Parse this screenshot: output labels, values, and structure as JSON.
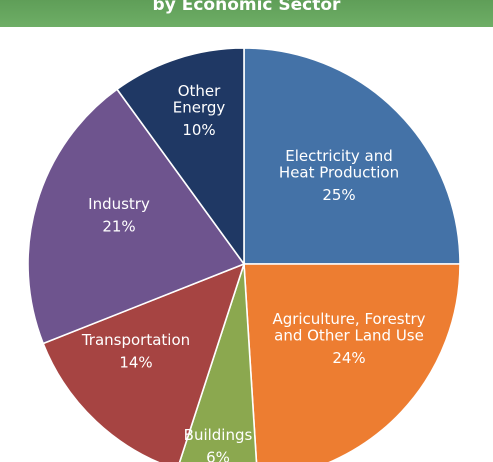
{
  "header": {
    "title": "by Economic Sector"
  },
  "chart_data": {
    "type": "pie",
    "title": "by Economic Sector",
    "slices": [
      {
        "label": "Electricity and Heat Production",
        "label_lines": [
          "Electricity and",
          "Heat Production"
        ],
        "value": 25,
        "value_label": "25%",
        "color": "#4472a7"
      },
      {
        "label": "Agriculture, Forestry and Other Land Use",
        "label_lines": [
          "Agriculture, Forestry",
          "and Other Land Use"
        ],
        "value": 24,
        "value_label": "24%",
        "color": "#ed7d31"
      },
      {
        "label": "Buildings",
        "label_lines": [
          "Buildings"
        ],
        "value": 6,
        "value_label": "6%",
        "color": "#8ba84f"
      },
      {
        "label": "Transportation",
        "label_lines": [
          "Transportation"
        ],
        "value": 14,
        "value_label": "14%",
        "color": "#a64442"
      },
      {
        "label": "Industry",
        "label_lines": [
          "Industry"
        ],
        "value": 21,
        "value_label": "21%",
        "color": "#6e548e"
      },
      {
        "label": "Other Energy",
        "label_lines": [
          "Other",
          "Energy"
        ],
        "value": 10,
        "value_label": "10%",
        "color": "#1f3864"
      }
    ]
  }
}
